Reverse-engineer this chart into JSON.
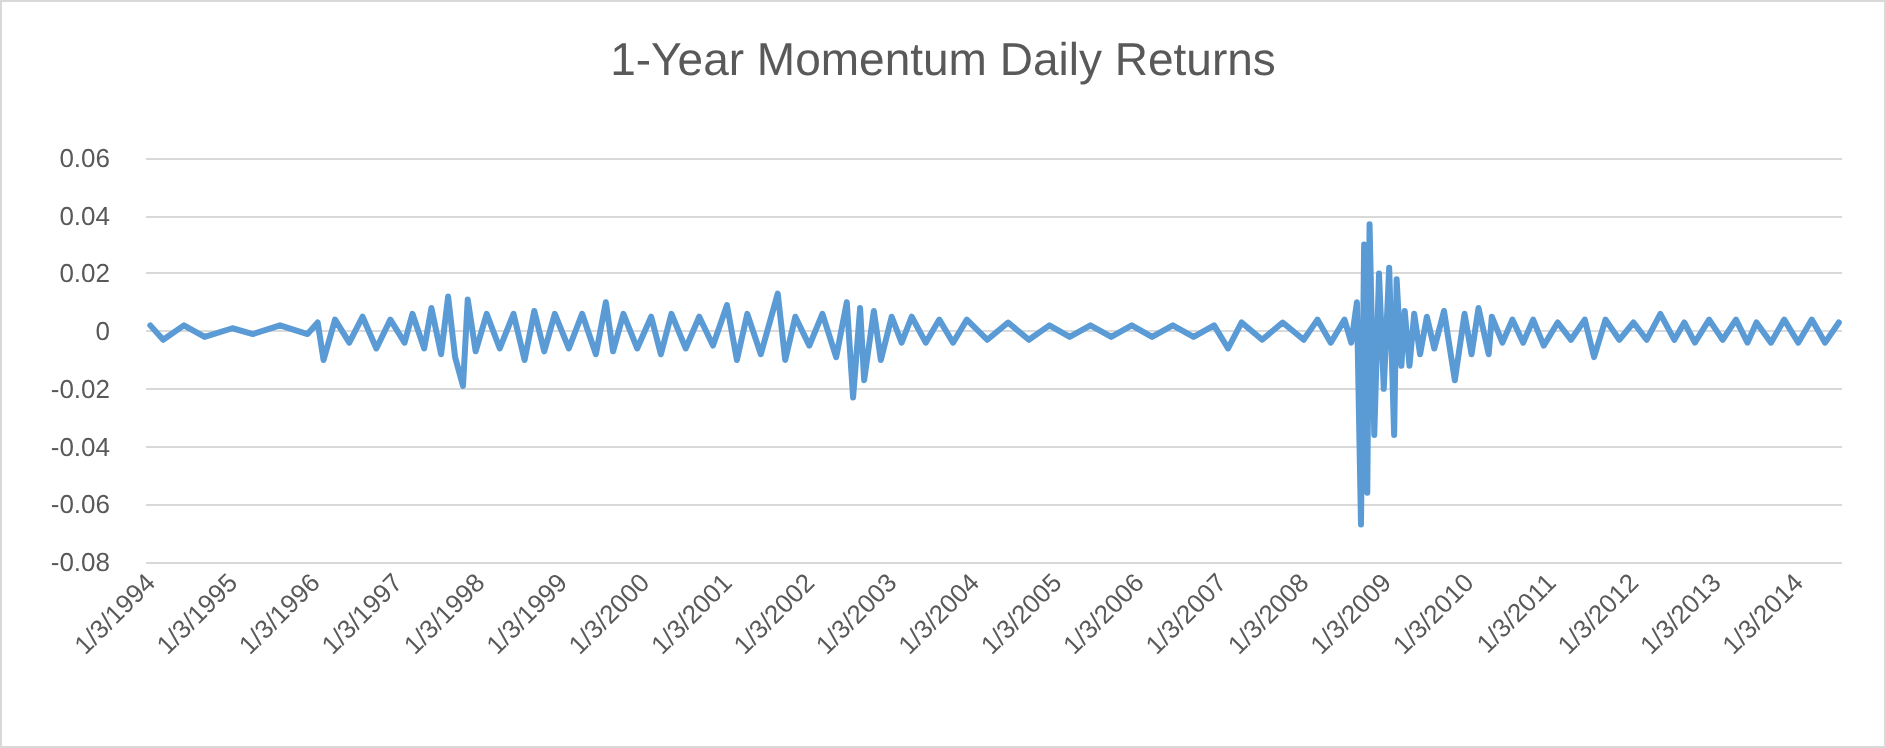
{
  "chart_data": {
    "type": "line",
    "title": "1-Year Momentum Daily Returns",
    "x": [
      "1994-01-03",
      "1994-03-01",
      "1994-06-01",
      "1994-09-01",
      "1995-01-02",
      "1995-04-03",
      "1995-08-01",
      "1995-12-01",
      "1996-01-15",
      "1996-02-10",
      "1996-04-01",
      "1996-06-03",
      "1996-08-01",
      "1996-10-01",
      "1996-12-02",
      "1997-02-03",
      "1997-03-10",
      "1997-05-01",
      "1997-06-02",
      "1997-07-15",
      "1997-08-15",
      "1997-09-15",
      "1997-10-20",
      "1997-11-10",
      "1997-12-15",
      "1998-02-02",
      "1998-04-01",
      "1998-06-01",
      "1998-07-20",
      "1998-09-01",
      "1998-10-15",
      "1998-12-01",
      "1999-02-01",
      "1999-04-01",
      "1999-06-01",
      "1999-07-15",
      "1999-08-16",
      "1999-10-01",
      "1999-12-01",
      "2000-02-01",
      "2000-03-15",
      "2000-05-01",
      "2000-07-03",
      "2000-09-01",
      "2000-11-01",
      "2001-01-02",
      "2001-02-15",
      "2001-04-02",
      "2001-06-01",
      "2001-08-15",
      "2001-09-17",
      "2001-11-01",
      "2002-01-02",
      "2002-03-01",
      "2002-05-01",
      "2002-06-17",
      "2002-07-15",
      "2002-08-15",
      "2002-09-02",
      "2002-10-15",
      "2002-11-15",
      "2003-01-02",
      "2003-02-15",
      "2003-04-01",
      "2003-06-02",
      "2003-08-01",
      "2003-10-01",
      "2003-12-01",
      "2004-03-01",
      "2004-06-01",
      "2004-09-01",
      "2004-12-01",
      "2005-03-01",
      "2005-06-01",
      "2005-09-01",
      "2005-12-01",
      "2006-03-01",
      "2006-06-01",
      "2006-09-01",
      "2006-12-01",
      "2007-02-01",
      "2007-04-02",
      "2007-07-02",
      "2007-10-01",
      "2008-01-02",
      "2008-03-03",
      "2008-05-01",
      "2008-07-01",
      "2008-07-31",
      "2008-08-25",
      "2008-09-12",
      "2008-09-26",
      "2008-10-10",
      "2008-10-20",
      "2008-11-10",
      "2008-12-01",
      "2008-12-22",
      "2009-01-15",
      "2009-02-06",
      "2009-02-17",
      "2009-03-10",
      "2009-03-25",
      "2009-04-15",
      "2009-05-06",
      "2009-06-01",
      "2009-07-01",
      "2009-08-03",
      "2009-09-15",
      "2009-11-02",
      "2009-12-15",
      "2010-01-15",
      "2010-02-15",
      "2010-04-01",
      "2010-04-15",
      "2010-06-01",
      "2010-07-15",
      "2010-09-01",
      "2010-10-15",
      "2010-12-01",
      "2011-02-01",
      "2011-04-01",
      "2011-06-01",
      "2011-07-12",
      "2011-09-01",
      "2011-11-01",
      "2012-01-03",
      "2012-03-01",
      "2012-05-01",
      "2012-07-02",
      "2012-08-15",
      "2012-10-01",
      "2012-12-03",
      "2013-02-01",
      "2013-04-01",
      "2013-05-22",
      "2013-07-01",
      "2013-09-03",
      "2013-11-01",
      "2014-01-02",
      "2014-03-03",
      "2014-05-01",
      "2014-07-01"
    ],
    "series": [
      {
        "color": "#5b9bd5",
        "values": [
          0.002,
          -0.003,
          0.002,
          -0.002,
          0.001,
          -0.001,
          0.002,
          -0.001,
          0.003,
          -0.01,
          0.004,
          -0.004,
          0.005,
          -0.006,
          0.004,
          -0.004,
          0.006,
          -0.006,
          0.008,
          -0.008,
          0.012,
          -0.009,
          -0.019,
          0.011,
          -0.007,
          0.006,
          -0.006,
          0.006,
          -0.01,
          0.007,
          -0.007,
          0.006,
          -0.006,
          0.006,
          -0.008,
          0.01,
          -0.007,
          0.006,
          -0.006,
          0.005,
          -0.008,
          0.006,
          -0.006,
          0.005,
          -0.005,
          0.009,
          -0.01,
          0.006,
          -0.008,
          0.013,
          -0.01,
          0.005,
          -0.005,
          0.006,
          -0.009,
          0.01,
          -0.023,
          0.008,
          -0.017,
          0.007,
          -0.01,
          0.005,
          -0.004,
          0.005,
          -0.004,
          0.004,
          -0.004,
          0.004,
          -0.003,
          0.003,
          -0.003,
          0.002,
          -0.002,
          0.002,
          -0.002,
          0.002,
          -0.002,
          0.002,
          -0.002,
          0.002,
          -0.006,
          0.003,
          -0.003,
          0.003,
          -0.003,
          0.004,
          -0.004,
          0.004,
          -0.004,
          0.01,
          -0.067,
          0.03,
          -0.056,
          0.037,
          -0.036,
          0.02,
          -0.02,
          0.022,
          -0.036,
          0.018,
          -0.012,
          0.007,
          -0.012,
          0.006,
          -0.008,
          0.005,
          -0.006,
          0.007,
          -0.017,
          0.006,
          -0.008,
          0.008,
          -0.008,
          0.005,
          -0.004,
          0.004,
          -0.004,
          0.004,
          -0.005,
          0.003,
          -0.003,
          0.004,
          -0.009,
          0.004,
          -0.003,
          0.003,
          -0.003,
          0.006,
          -0.003,
          0.003,
          -0.004,
          0.004,
          -0.003,
          0.004,
          -0.004,
          0.003,
          -0.004,
          0.004,
          -0.004,
          0.004,
          -0.004,
          0.003
        ]
      }
    ],
    "xlim": [
      "1993-12-15",
      "2014-07-15"
    ],
    "xticks": [
      {
        "value": "1994-01-03",
        "label": "1/3/1994"
      },
      {
        "value": "1995-01-03",
        "label": "1/3/1995"
      },
      {
        "value": "1996-01-03",
        "label": "1/3/1996"
      },
      {
        "value": "1997-01-03",
        "label": "1/3/1997"
      },
      {
        "value": "1998-01-03",
        "label": "1/3/1998"
      },
      {
        "value": "1999-01-03",
        "label": "1/3/1999"
      },
      {
        "value": "2000-01-03",
        "label": "1/3/2000"
      },
      {
        "value": "2001-01-03",
        "label": "1/3/2001"
      },
      {
        "value": "2002-01-03",
        "label": "1/3/2002"
      },
      {
        "value": "2003-01-03",
        "label": "1/3/2003"
      },
      {
        "value": "2004-01-03",
        "label": "1/3/2004"
      },
      {
        "value": "2005-01-03",
        "label": "1/3/2005"
      },
      {
        "value": "2006-01-03",
        "label": "1/3/2006"
      },
      {
        "value": "2007-01-03",
        "label": "1/3/2007"
      },
      {
        "value": "2008-01-03",
        "label": "1/3/2008"
      },
      {
        "value": "2009-01-03",
        "label": "1/3/2009"
      },
      {
        "value": "2010-01-03",
        "label": "1/3/2010"
      },
      {
        "value": "2011-01-03",
        "label": "1/3/2011"
      },
      {
        "value": "2012-01-03",
        "label": "1/3/2012"
      },
      {
        "value": "2013-01-03",
        "label": "1/3/2013"
      },
      {
        "value": "2014-01-03",
        "label": "1/3/2014"
      }
    ],
    "ylim": [
      -0.08,
      0.06
    ],
    "yticks": [
      -0.08,
      -0.06,
      -0.04,
      -0.02,
      0,
      0.02,
      0.04,
      0.06
    ],
    "grid": "y",
    "marker": "none",
    "line_style": "solid"
  }
}
